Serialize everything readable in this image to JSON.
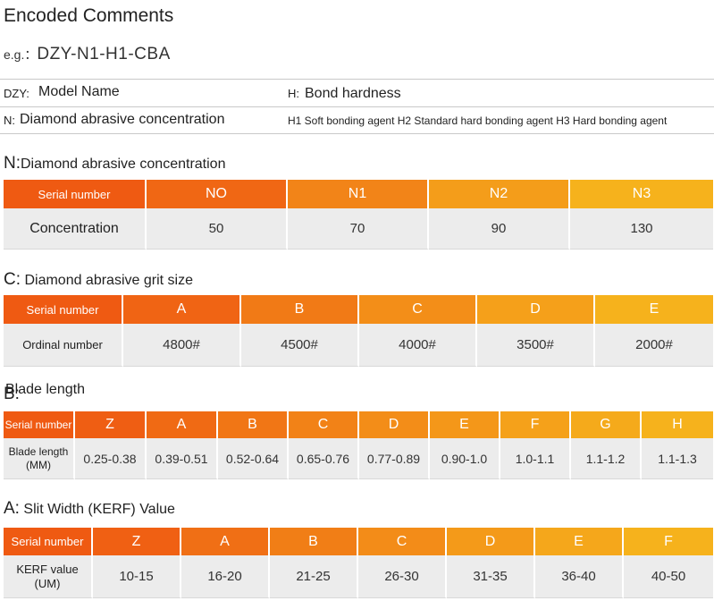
{
  "title": "Encoded Comments",
  "example": {
    "prefix": "e.g.：",
    "code": "DZY-N1-H1-CBA"
  },
  "legend": {
    "dzy_key": "DZY:",
    "dzy_value": "Model Name",
    "h_key": "H:",
    "h_value": "Bond hardness",
    "n_key": "N:",
    "n_value": "Diamond abrasive concentration",
    "h_detail": "H1 Soft bonding agent H2 Standard hard bonding agent H3 Hard bonding agent"
  },
  "colors": {
    "orange_dark": "#ef5a12",
    "orange_mid": "#f38a1a",
    "orange_light": "#f6b21c",
    "row_bg": "#ececec"
  },
  "sections": {
    "concentration": {
      "key": "N:",
      "label": "Diamond abrasive concentration",
      "header_label": "Serial number",
      "columns": [
        "NO",
        "N1",
        "N2",
        "N3"
      ],
      "row_label": "Concentration",
      "values": [
        "50",
        "70",
        "90",
        "130"
      ]
    },
    "grit": {
      "key": "C:",
      "label": "Diamond abrasive grit size",
      "header_label": "Serial number",
      "columns": [
        "A",
        "B",
        "C",
        "D",
        "E"
      ],
      "row_label": "Ordinal number",
      "values": [
        "4800#",
        "4500#",
        "4000#",
        "3500#",
        "2000#"
      ]
    },
    "blade": {
      "key": "B:",
      "label": "Blade length",
      "header_label": "Serial number",
      "columns": [
        "Z",
        "A",
        "B",
        "C",
        "D",
        "E",
        "F",
        "G",
        "H"
      ],
      "row_label_1": "Blade length",
      "row_label_2": "(MM)",
      "values": [
        "0.25-0.38",
        "0.39-0.51",
        "0.52-0.64",
        "0.65-0.76",
        "0.77-0.89",
        "0.90-1.0",
        "1.0-1.1",
        "1.1-1.2",
        "1.1-1.3"
      ]
    },
    "kerf": {
      "key": "A:",
      "label": "Slit Width (KERF) Value",
      "header_label": "Serial number",
      "columns": [
        "Z",
        "A",
        "B",
        "C",
        "D",
        "E",
        "F"
      ],
      "row_label_1": "KERF value",
      "row_label_2": "(UM)",
      "values": [
        "10-15",
        "16-20",
        "21-25",
        "26-30",
        "31-35",
        "36-40",
        "40-50"
      ]
    }
  }
}
